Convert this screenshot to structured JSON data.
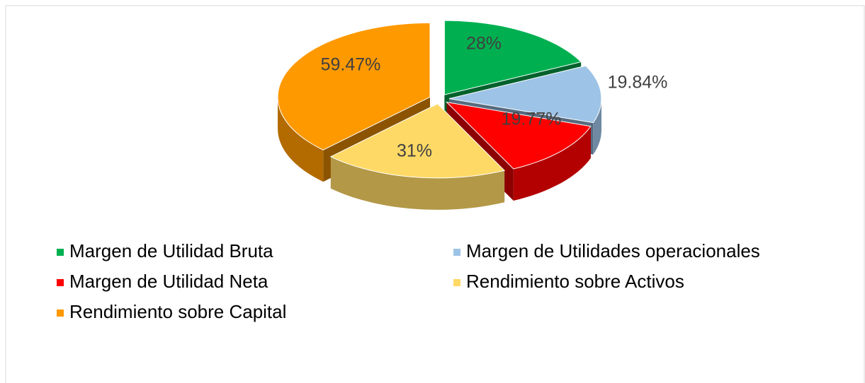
{
  "chart_data": {
    "type": "pie",
    "categories": [
      "Margen de Utilidad Bruta",
      "Margen de Utilidades operacionales",
      "Margen de Utilidad Neta",
      "Rendimiento sobre Activos",
      "Rendimiento sobre Capital"
    ],
    "values": [
      28,
      19.84,
      19.77,
      31,
      59.47
    ],
    "value_labels": [
      "28%",
      "19.84%",
      "19.77%",
      "31%",
      "59.47%"
    ],
    "colors": [
      "#00b050",
      "#9dc3e6",
      "#ff0000",
      "#ffd966",
      "#ff9900"
    ],
    "legend": "bottom"
  }
}
